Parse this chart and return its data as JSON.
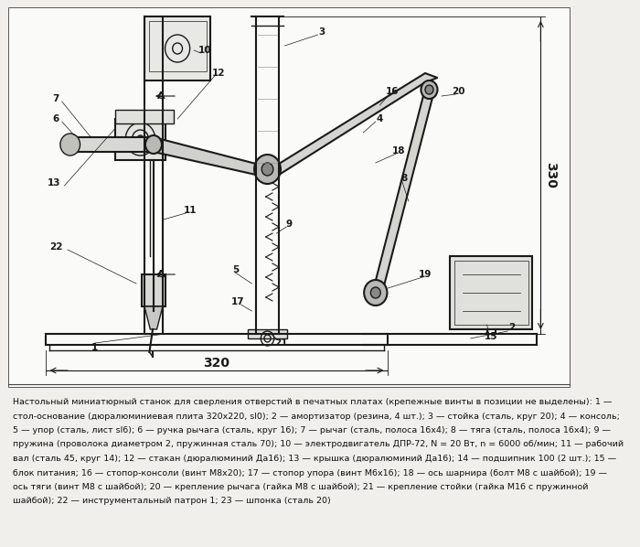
{
  "bg_color": "#f5f5f0",
  "drawing_bg": "#ffffff",
  "line_color": "#1a1a1a",
  "title": "",
  "description_lines": [
    "Настольный миниатюрный станок для сверления отверстий в печатных платах (крепежные винты в позиции не выделены): 1 —",
    "стол-основание (дюралюминиевая плита 320х220, sl0); 2 — амортизатор (резина, 4 шт.); 3 — стойка (сталь, круг 20); 4 — консоль;",
    "5 — упор (сталь, лист sl6); 6 — ручка рычага (сталь, круг 16); 7 — рычаг (сталь, полоса 16х4); 8 — тяга (сталь, полоса 16х4); 9 —",
    "пружина (проволока диаметром 2, пружинная сталь 70); 10 — электродвигатель ДПР-72, N = 20 Вт, n = 6000 об/мин; 11 — рабочий",
    "вал (сталь 45, круг 14); 12 — стакан (дюралюминий Да16); 13 — крышка (дюралюминий Да16); 14 — подшипник 100 (2 шт.); 15 —",
    "блок питания; 16 — стопор-консоли (винт М8х20); 17 — стопор упора (винт М6х16); 18 — ось шарнира (болт М8 с шайбой); 19 —",
    "ось тяги (винт М8 с шайбой); 20 — крепление рычага (гайка М8 с шайбой); 21 — крепление стойки (гайка М16 с пружинной",
    "шайбой); 22 — инструментальный патрон 1; 23 — шпонка (сталь 20)"
  ],
  "lc": "#1a1a1a",
  "dim_color": "#1a1a1a",
  "text_color": "#1a1a1a"
}
